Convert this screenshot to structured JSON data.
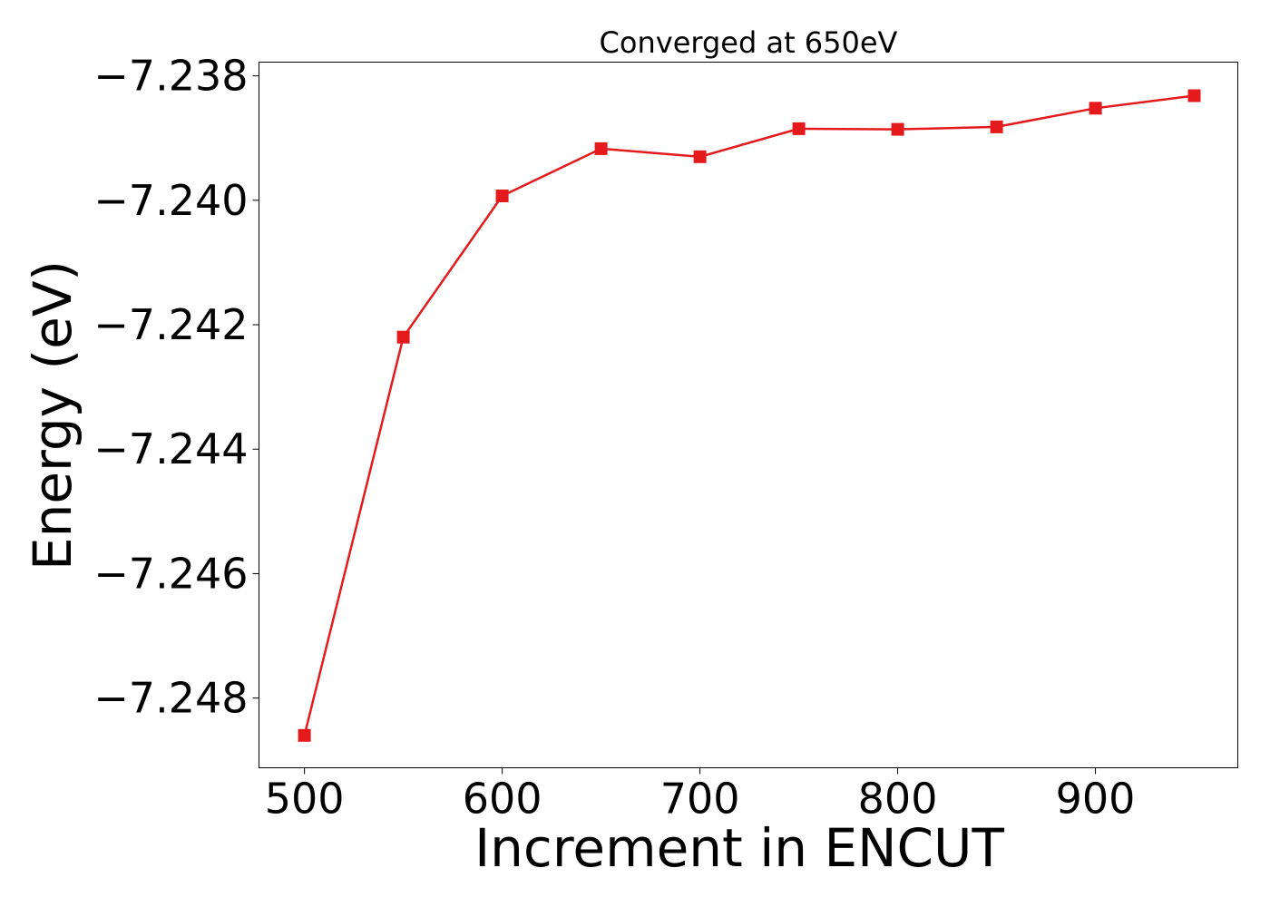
{
  "chart_data": {
    "type": "line",
    "title": "Converged at 650eV",
    "xlabel": "Increment in ENCUT",
    "ylabel": "Energy (eV)",
    "xlim": [
      477,
      972
    ],
    "ylim": [
      -7.24912,
      -7.23778
    ],
    "xticks": [
      500,
      600,
      700,
      800,
      900
    ],
    "xtick_labels": [
      "500",
      "600",
      "700",
      "800",
      "900"
    ],
    "yticks": [
      -7.238,
      -7.24,
      -7.242,
      -7.244,
      -7.246,
      -7.248
    ],
    "ytick_labels": [
      "−7.238",
      "−7.240",
      "−7.242",
      "−7.244",
      "−7.246",
      "−7.248"
    ],
    "grid": false,
    "series": [
      {
        "color": "#e41a1c",
        "marker": "square",
        "x": [
          500,
          550,
          600,
          650,
          700,
          750,
          800,
          850,
          900,
          950
        ],
        "y": [
          -7.2486,
          -7.2422,
          -7.23993,
          -7.23917,
          -7.2393,
          -7.23885,
          -7.23886,
          -7.23882,
          -7.23852,
          -7.23832
        ]
      }
    ]
  }
}
